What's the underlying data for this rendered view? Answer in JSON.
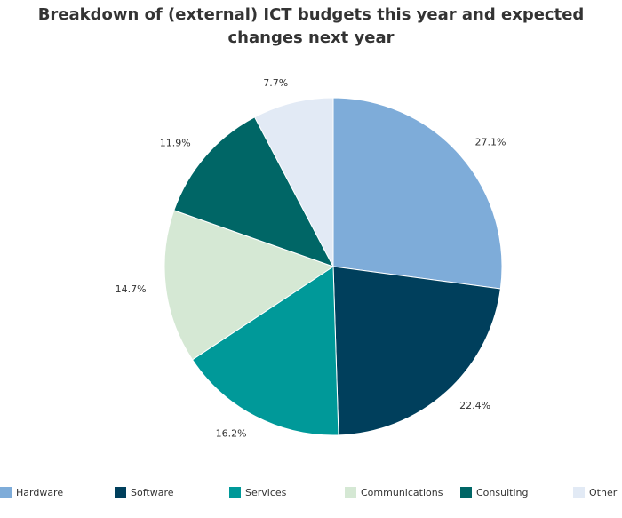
{
  "chart_data": {
    "type": "pie",
    "title": "Breakdown of (external) ICT budgets this year and expected changes next year",
    "categories": [
      "Hardware",
      "Software",
      "Services",
      "Communications",
      "Consulting",
      "Other"
    ],
    "values": [
      27.1,
      22.4,
      16.2,
      14.7,
      11.9,
      7.7
    ],
    "value_labels": [
      "27.1%",
      "22.4%",
      "16.2%",
      "14.7%",
      "11.9%",
      "7.7%"
    ],
    "colors": [
      "#7eacd9",
      "#003f5c",
      "#009999",
      "#d5e8d4",
      "#006666",
      "#e2eaf5"
    ],
    "legend": "bottom"
  }
}
